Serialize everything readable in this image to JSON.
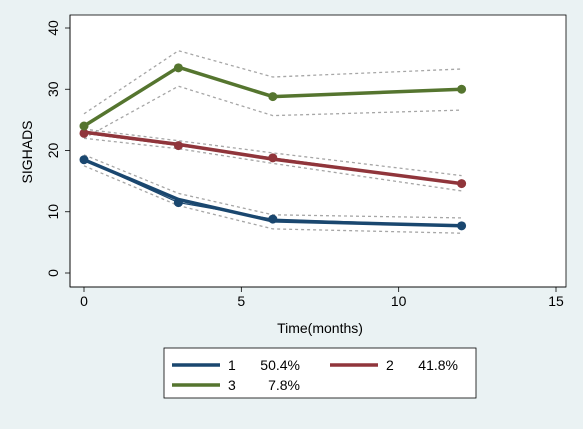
{
  "chart_data": {
    "type": "line",
    "title": "",
    "xlabel": "Time(months)",
    "ylabel": "SIGHADS",
    "xlim": [
      0,
      15
    ],
    "ylim": [
      0,
      40
    ],
    "xticks": [
      "0",
      "5",
      "10",
      "15"
    ],
    "yticks": [
      "0",
      "10",
      "20",
      "30",
      "40"
    ],
    "grid": false,
    "legend_position": "bottom",
    "series": [
      {
        "name": "1",
        "pct": "50.4%",
        "color": "#1a476f",
        "observed_x": [
          0,
          3,
          6,
          12
        ],
        "observed_y": [
          18.5,
          11.5,
          8.8,
          7.7
        ],
        "fitted_x": [
          0,
          3,
          6,
          12
        ],
        "fitted_y": [
          18.5,
          12.0,
          8.5,
          7.7
        ],
        "ci_upper": [
          19.3,
          13.0,
          9.5,
          9.0
        ],
        "ci_lower": [
          17.5,
          11.0,
          7.2,
          6.5
        ]
      },
      {
        "name": "2",
        "pct": "41.8%",
        "color": "#90353b",
        "observed_x": [
          0,
          3,
          6,
          12
        ],
        "observed_y": [
          22.8,
          20.8,
          18.8,
          14.6
        ],
        "fitted_x": [
          0,
          3,
          6,
          12
        ],
        "fitted_y": [
          23.0,
          21.0,
          18.6,
          14.6
        ],
        "ci_upper": [
          23.5,
          21.6,
          19.6,
          15.9
        ],
        "ci_lower": [
          22.0,
          20.3,
          17.9,
          13.4
        ]
      },
      {
        "name": "3",
        "pct": "7.8%",
        "color": "#55752f",
        "observed_x": [
          0,
          3,
          6,
          12
        ],
        "observed_y": [
          24.0,
          33.5,
          28.8,
          30.0
        ],
        "fitted_x": [
          0,
          3,
          6,
          12
        ],
        "fitted_y": [
          24.0,
          33.6,
          28.8,
          30.0
        ],
        "ci_upper": [
          26.0,
          36.3,
          32.0,
          33.3
        ],
        "ci_lower": [
          22.0,
          30.5,
          25.7,
          26.6
        ]
      }
    ]
  }
}
